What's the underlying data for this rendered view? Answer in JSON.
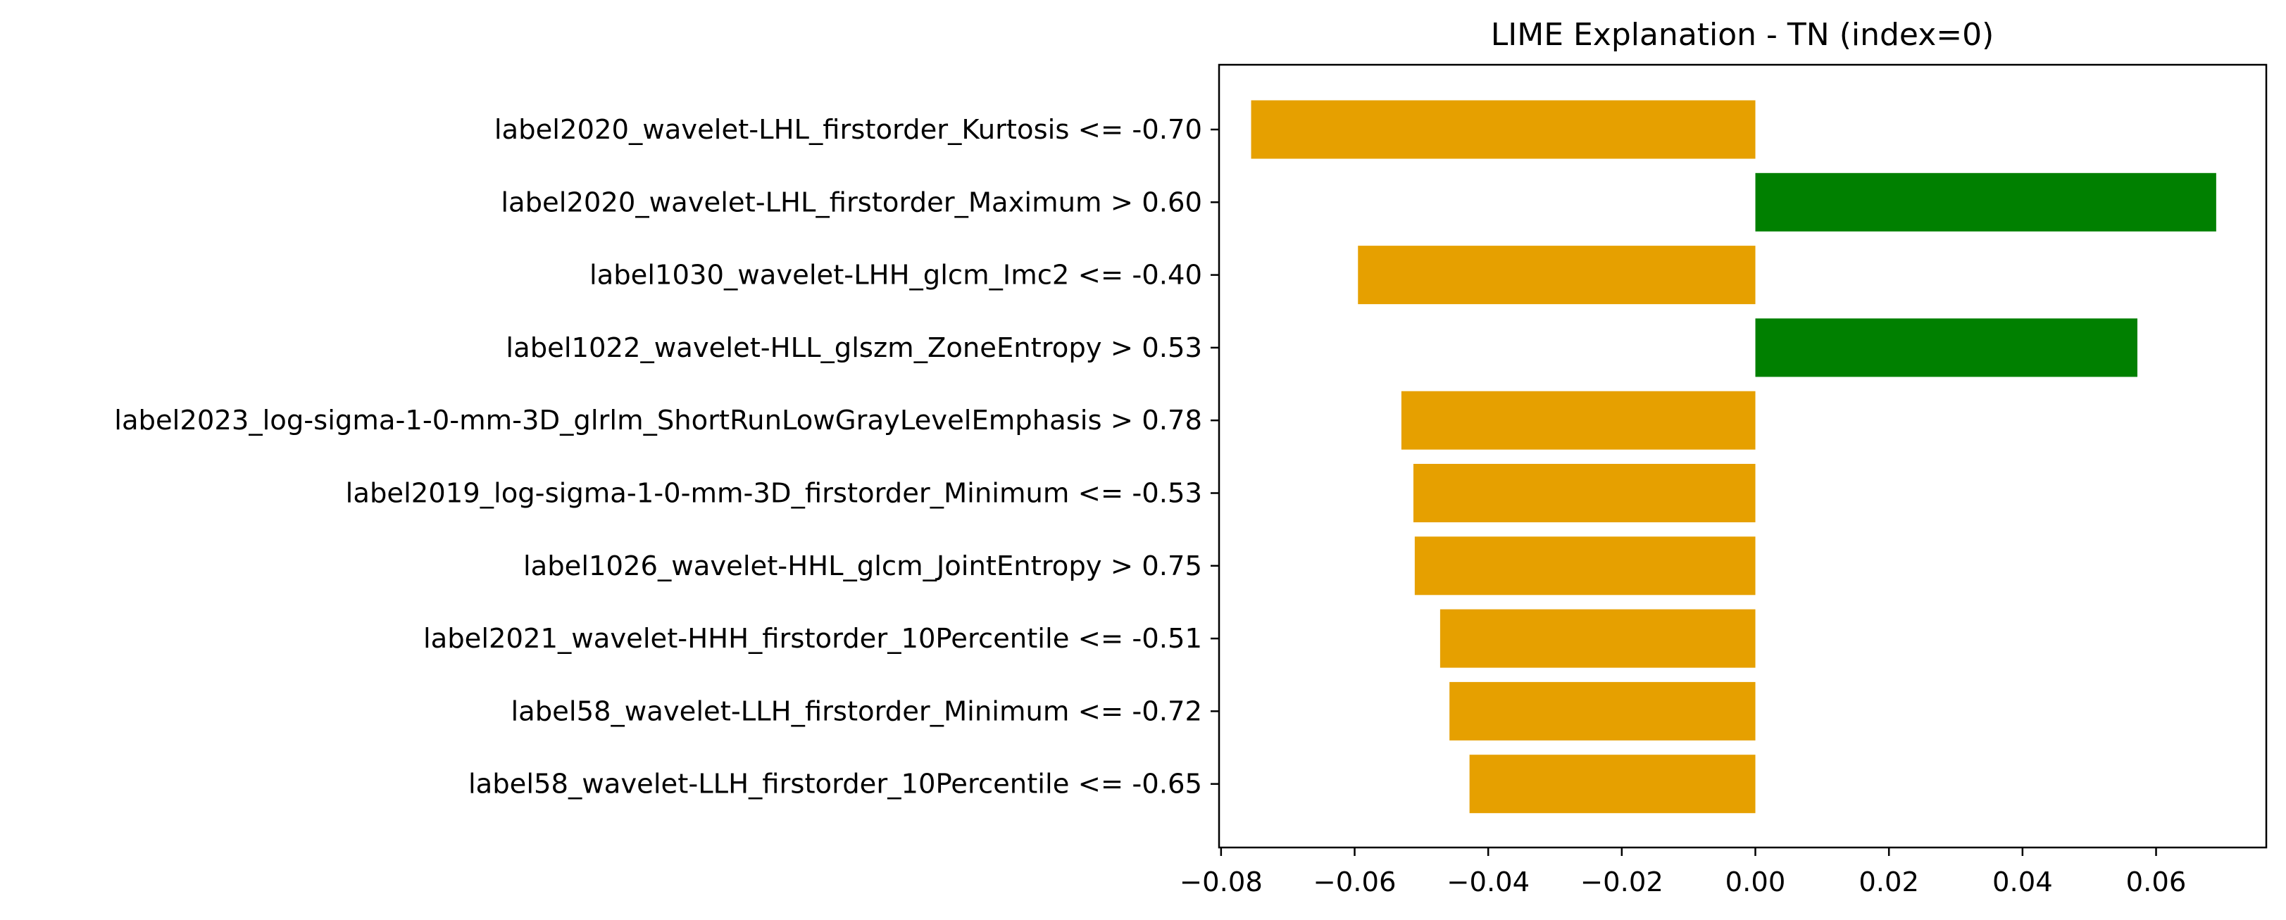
{
  "chart_data": {
    "type": "bar",
    "orientation": "horizontal",
    "title": "LIME Explanation - TN (index=0)",
    "xlabel": "",
    "ylabel": "",
    "xlim": [
      -0.0803,
      0.0765
    ],
    "xticks": [
      -0.08,
      -0.06,
      -0.04,
      -0.02,
      0.0,
      0.02,
      0.04,
      0.06
    ],
    "xtick_labels": [
      "−0.08",
      "−0.06",
      "−0.04",
      "−0.02",
      "0.00",
      "0.02",
      "0.04",
      "0.06"
    ],
    "grid": false,
    "colors": {
      "positive": "#008000",
      "negative": "#e6a000"
    },
    "categories": [
      "label2020_wavelet-LHL_firstorder_Kurtosis <= -0.70",
      "label2020_wavelet-LHL_firstorder_Maximum > 0.60",
      "label1030_wavelet-LHH_glcm_Imc2 <= -0.40",
      "label1022_wavelet-HLL_glszm_ZoneEntropy > 0.53",
      "label2023_log-sigma-1-0-mm-3D_glrlm_ShortRunLowGrayLevelEmphasis > 0.78",
      "label2019_log-sigma-1-0-mm-3D_firstorder_Minimum <= -0.53",
      "label1026_wavelet-HHL_glcm_JointEntropy > 0.75",
      "label2021_wavelet-HHH_firstorder_10Percentile <= -0.51",
      "label58_wavelet-LLH_firstorder_Minimum <= -0.72",
      "label58_wavelet-LLH_firstorder_10Percentile <= -0.65"
    ],
    "values": [
      -0.0755,
      0.069,
      -0.0595,
      0.0572,
      -0.053,
      -0.0512,
      -0.051,
      -0.0472,
      -0.0458,
      -0.0428
    ]
  }
}
